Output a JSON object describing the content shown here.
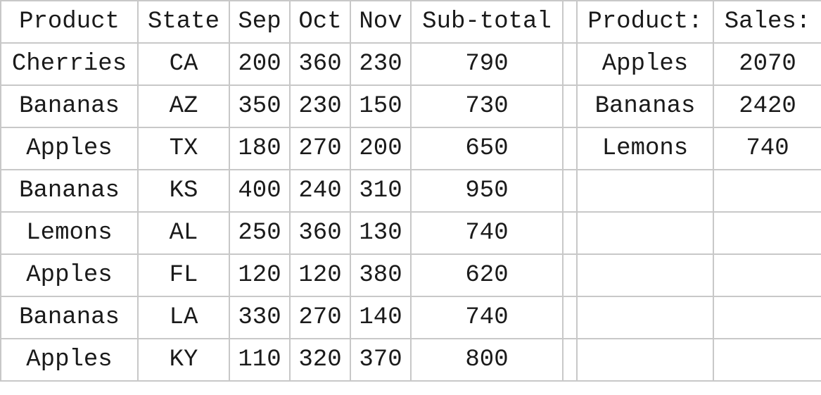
{
  "left_table": {
    "headers": [
      "Product",
      "State",
      "Sep",
      "Oct",
      "Nov",
      "Sub-total"
    ],
    "rows": [
      [
        "Cherries",
        "CA",
        "200",
        "360",
        "230",
        "790"
      ],
      [
        "Bananas",
        "AZ",
        "350",
        "230",
        "150",
        "730"
      ],
      [
        "Apples",
        "TX",
        "180",
        "270",
        "200",
        "650"
      ],
      [
        "Bananas",
        "KS",
        "400",
        "240",
        "310",
        "950"
      ],
      [
        "Lemons",
        "AL",
        "250",
        "360",
        "130",
        "740"
      ],
      [
        "Apples",
        "FL",
        "120",
        "120",
        "380",
        "620"
      ],
      [
        "Bananas",
        "LA",
        "330",
        "270",
        "140",
        "740"
      ],
      [
        "Apples",
        "KY",
        "110",
        "320",
        "370",
        "800"
      ]
    ]
  },
  "right_table": {
    "headers": [
      "Product:",
      "Sales:"
    ],
    "rows": [
      [
        "Apples",
        "2070"
      ],
      [
        "Bananas",
        "2420"
      ],
      [
        "Lemons",
        "740"
      ],
      [
        "",
        ""
      ],
      [
        "",
        ""
      ],
      [
        "",
        ""
      ],
      [
        "",
        ""
      ],
      [
        "",
        ""
      ]
    ]
  },
  "colors": {
    "grid_line": "#c8c8c8",
    "text": "#1a1a1a",
    "background": "#ffffff"
  }
}
